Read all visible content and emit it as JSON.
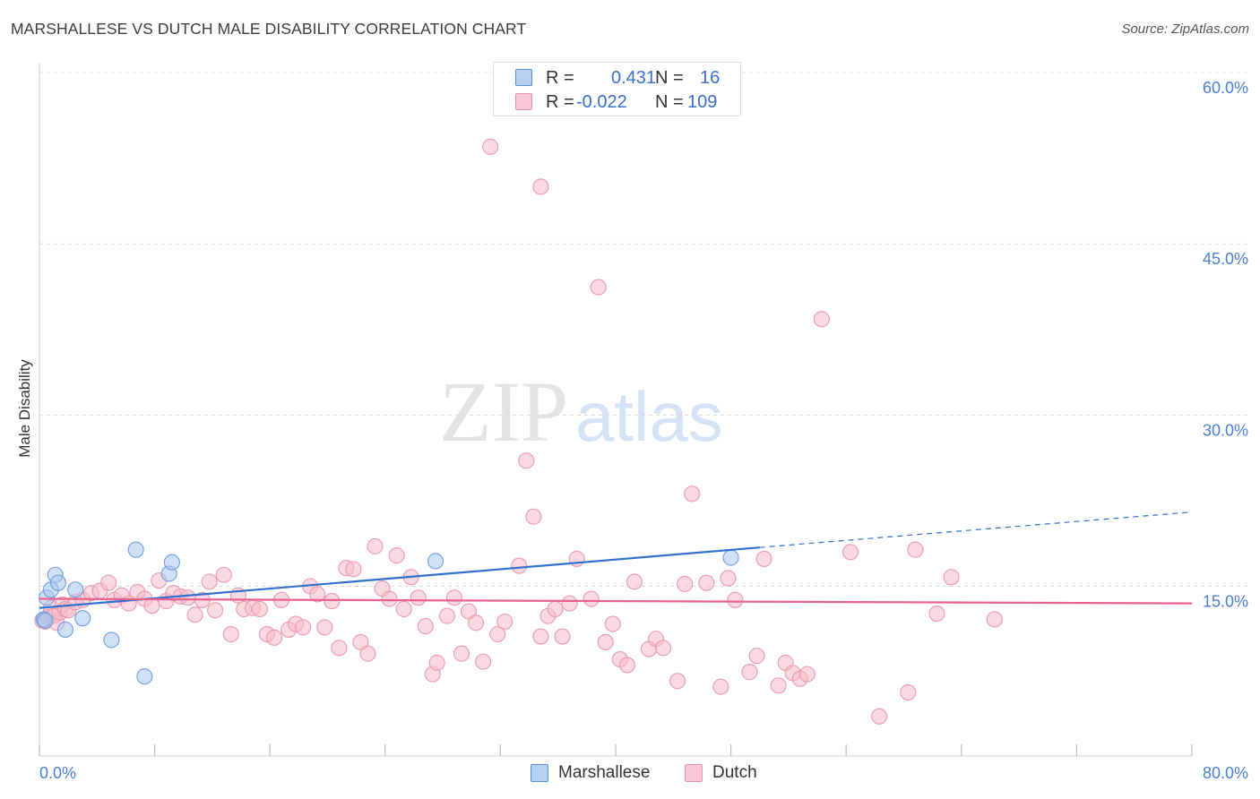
{
  "header": {
    "title": "MARSHALLESE VS DUTCH MALE DISABILITY CORRELATION CHART",
    "source": "Source: ZipAtlas.com"
  },
  "watermark": {
    "part1": "ZIP",
    "part2": "atlas"
  },
  "legend": {
    "r_label": "R =",
    "n_label": "N =",
    "rows": [
      {
        "name": "Marshallese",
        "r": "0.431",
        "n": "16",
        "fill": "#b8d0f2",
        "stroke": "#5b8fd8"
      },
      {
        "name": "Dutch",
        "r": "-0.022",
        "n": "109",
        "fill": "#f8c6d4",
        "stroke": "#e890a8"
      }
    ]
  },
  "colors": {
    "blue_point_fill": "#a9c7ef",
    "blue_point_stroke": "#6f9ee0",
    "blue_line": "#2f6fd0",
    "pink_point_fill": "#f6bccb",
    "pink_point_stroke": "#ea98ae",
    "pink_line": "#e8628e",
    "tick_label": "#4a7fd4",
    "grid": "#dcdcdc"
  },
  "chart_data": {
    "type": "scatter",
    "title": "MARSHALLESE VS DUTCH MALE DISABILITY CORRELATION CHART",
    "xlabel": "",
    "ylabel": "Male Disability",
    "xlim": [
      0,
      80
    ],
    "ylim": [
      0,
      63
    ],
    "x_tick_labels": [
      "0.0%",
      "80.0%"
    ],
    "y_ticks": [
      15,
      30,
      45,
      60
    ],
    "y_tick_labels": [
      "15.0%",
      "30.0%",
      "45.0%",
      "60.0%"
    ],
    "grid": true,
    "series": [
      {
        "name": "Marshallese",
        "r": 0.431,
        "n": 16,
        "points": [
          [
            0.3,
            12.1
          ],
          [
            0.5,
            14.0
          ],
          [
            0.8,
            14.7
          ],
          [
            1.1,
            16.0
          ],
          [
            1.3,
            15.3
          ],
          [
            1.8,
            11.2
          ],
          [
            2.5,
            14.7
          ],
          [
            3.0,
            12.2
          ],
          [
            5.0,
            10.3
          ],
          [
            6.7,
            18.2
          ],
          [
            7.3,
            7.1
          ],
          [
            9.0,
            16.1
          ],
          [
            9.2,
            17.1
          ],
          [
            27.5,
            17.2
          ],
          [
            48.0,
            17.5
          ],
          [
            0.4,
            12.0
          ]
        ],
        "trend": {
          "x0": 0,
          "y0": 13.1,
          "x1": 50,
          "y1": 18.4,
          "dashed_to_x": 80,
          "dashed_to_y": 21.5
        }
      },
      {
        "name": "Dutch",
        "r": -0.022,
        "n": 109,
        "points": [
          [
            0.2,
            12.0
          ],
          [
            0.4,
            11.9
          ],
          [
            0.6,
            12.3
          ],
          [
            0.8,
            13.1
          ],
          [
            1.0,
            12.4
          ],
          [
            1.2,
            11.8
          ],
          [
            1.4,
            12.7
          ],
          [
            1.6,
            13.4
          ],
          [
            1.8,
            13.0
          ],
          [
            2.0,
            12.9
          ],
          [
            2.5,
            13.6
          ],
          [
            3.0,
            13.8
          ],
          [
            3.6,
            14.4
          ],
          [
            4.2,
            14.6
          ],
          [
            4.8,
            15.3
          ],
          [
            5.2,
            13.8
          ],
          [
            5.7,
            14.2
          ],
          [
            6.2,
            13.5
          ],
          [
            6.8,
            14.5
          ],
          [
            7.3,
            13.9
          ],
          [
            7.8,
            13.3
          ],
          [
            8.3,
            15.5
          ],
          [
            8.8,
            13.7
          ],
          [
            9.3,
            14.4
          ],
          [
            9.8,
            14.1
          ],
          [
            10.3,
            14.0
          ],
          [
            10.8,
            12.5
          ],
          [
            11.3,
            13.8
          ],
          [
            11.8,
            15.4
          ],
          [
            12.2,
            12.9
          ],
          [
            12.8,
            16.0
          ],
          [
            13.3,
            10.8
          ],
          [
            13.8,
            14.2
          ],
          [
            14.2,
            13.0
          ],
          [
            14.8,
            13.1
          ],
          [
            15.3,
            13.0
          ],
          [
            15.8,
            10.8
          ],
          [
            16.3,
            10.5
          ],
          [
            16.8,
            13.8
          ],
          [
            17.3,
            11.2
          ],
          [
            17.8,
            11.7
          ],
          [
            18.3,
            11.4
          ],
          [
            18.8,
            15.0
          ],
          [
            19.3,
            14.3
          ],
          [
            19.8,
            11.4
          ],
          [
            20.3,
            13.7
          ],
          [
            20.8,
            9.6
          ],
          [
            21.3,
            16.6
          ],
          [
            21.8,
            16.5
          ],
          [
            22.3,
            10.1
          ],
          [
            22.8,
            9.1
          ],
          [
            23.3,
            18.5
          ],
          [
            23.8,
            14.8
          ],
          [
            24.3,
            13.9
          ],
          [
            24.8,
            17.7
          ],
          [
            25.3,
            13.0
          ],
          [
            25.8,
            15.8
          ],
          [
            26.3,
            14.0
          ],
          [
            26.8,
            11.5
          ],
          [
            27.3,
            7.3
          ],
          [
            27.6,
            8.3
          ],
          [
            28.3,
            12.4
          ],
          [
            28.8,
            14.0
          ],
          [
            29.3,
            9.1
          ],
          [
            29.8,
            12.8
          ],
          [
            30.3,
            11.8
          ],
          [
            30.8,
            8.4
          ],
          [
            31.3,
            53.5
          ],
          [
            31.8,
            10.8
          ],
          [
            32.3,
            11.9
          ],
          [
            33.3,
            16.8
          ],
          [
            33.8,
            26.0
          ],
          [
            34.3,
            21.1
          ],
          [
            34.8,
            10.6
          ],
          [
            35.3,
            12.4
          ],
          [
            35.8,
            13.0
          ],
          [
            36.3,
            10.6
          ],
          [
            36.8,
            13.5
          ],
          [
            37.3,
            17.4
          ],
          [
            38.3,
            13.9
          ],
          [
            38.8,
            41.2
          ],
          [
            39.3,
            10.1
          ],
          [
            39.8,
            11.7
          ],
          [
            40.3,
            8.6
          ],
          [
            40.8,
            8.1
          ],
          [
            41.3,
            15.4
          ],
          [
            42.3,
            9.5
          ],
          [
            42.8,
            10.4
          ],
          [
            43.3,
            9.6
          ],
          [
            44.3,
            6.7
          ],
          [
            44.8,
            15.2
          ],
          [
            45.3,
            23.1
          ],
          [
            46.3,
            15.3
          ],
          [
            47.3,
            6.2
          ],
          [
            47.8,
            15.7
          ],
          [
            48.3,
            13.8
          ],
          [
            49.3,
            7.5
          ],
          [
            49.8,
            8.9
          ],
          [
            50.3,
            17.4
          ],
          [
            51.3,
            6.3
          ],
          [
            51.8,
            8.3
          ],
          [
            52.3,
            7.4
          ],
          [
            52.8,
            6.9
          ],
          [
            53.3,
            7.3
          ],
          [
            54.3,
            38.4
          ],
          [
            56.3,
            18.0
          ],
          [
            58.3,
            3.6
          ],
          [
            60.3,
            5.7
          ],
          [
            60.8,
            18.2
          ],
          [
            62.3,
            12.6
          ],
          [
            63.3,
            15.8
          ],
          [
            66.3,
            12.1
          ]
        ],
        "extra_point": [
          34.8,
          50.0
        ],
        "trend": {
          "x0": 0,
          "y0": 13.9,
          "x1": 80,
          "y1": 13.5
        }
      }
    ]
  }
}
